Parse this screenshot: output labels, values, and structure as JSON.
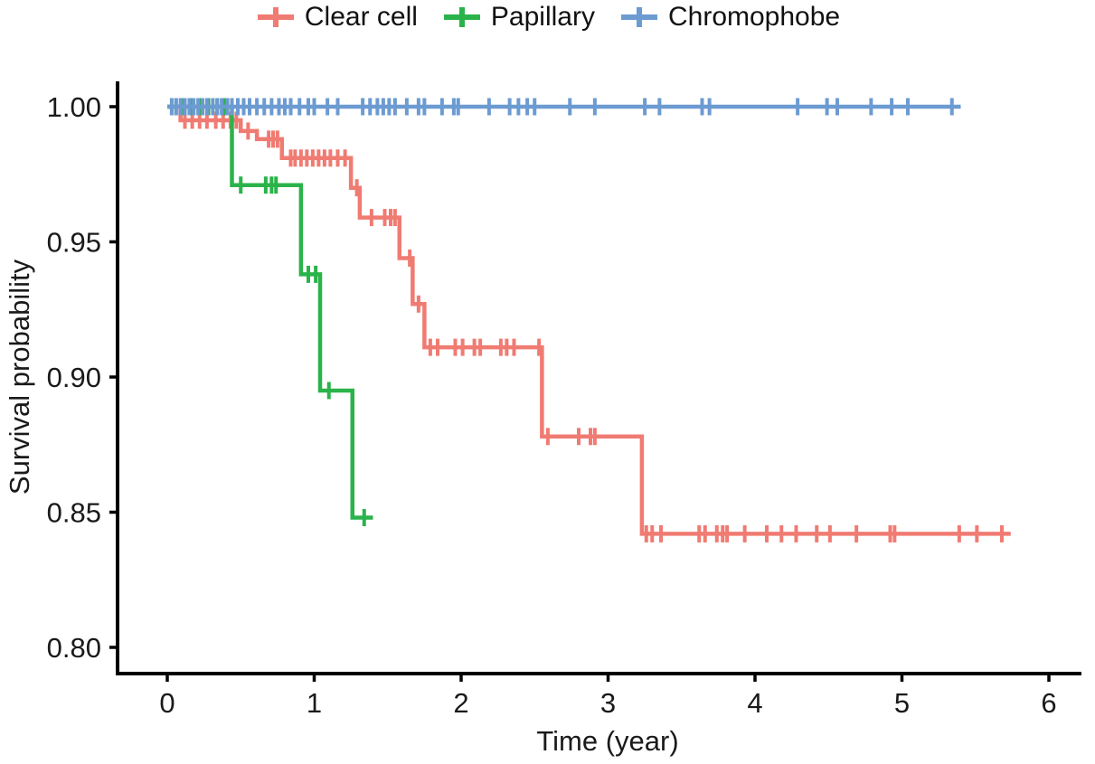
{
  "chart_data": {
    "type": "line",
    "chart_kind": "kaplan-meier-step",
    "title": "",
    "xlabel": "Time (year)",
    "ylabel": "Survival probability",
    "xlim": [
      0,
      6
    ],
    "xticks": [
      0,
      1,
      2,
      3,
      4,
      5,
      6
    ],
    "xtick_labels": [
      "0",
      "1",
      "2",
      "3",
      "4",
      "5",
      "6"
    ],
    "ylim": [
      0.8,
      1.0
    ],
    "yticks": [
      1.0,
      0.95,
      0.9,
      0.85,
      0.8
    ],
    "ytick_labels": [
      "1.00",
      "0.95",
      "0.90",
      "0.85",
      "0.80"
    ],
    "grid": false,
    "legend_position": "top-center",
    "axis_color": "#000000",
    "text_color": "#1a1a1a",
    "series": [
      {
        "name": "Clear cell",
        "color": "#F07B72",
        "steps": [
          [
            0,
            1.0
          ],
          [
            0.09,
            0.995
          ],
          [
            0.5,
            0.991
          ],
          [
            0.61,
            0.988
          ],
          [
            0.78,
            0.981
          ],
          [
            1.25,
            0.97
          ],
          [
            1.31,
            0.959
          ],
          [
            1.58,
            0.944
          ],
          [
            1.67,
            0.927
          ],
          [
            1.75,
            0.911
          ],
          [
            2.55,
            0.878
          ],
          [
            3.23,
            0.842
          ]
        ],
        "end_time": 5.74,
        "censor_times": [
          0.12,
          0.17,
          0.22,
          0.27,
          0.33,
          0.38,
          0.43,
          0.47,
          0.55,
          0.69,
          0.72,
          0.75,
          0.84,
          0.87,
          0.91,
          0.95,
          0.99,
          1.03,
          1.07,
          1.11,
          1.16,
          1.21,
          1.29,
          1.39,
          1.48,
          1.52,
          1.55,
          1.65,
          1.71,
          1.79,
          1.84,
          1.96,
          2.01,
          2.09,
          2.13,
          2.27,
          2.31,
          2.36,
          2.53,
          2.59,
          2.8,
          2.88,
          2.91,
          3.26,
          3.3,
          3.36,
          3.62,
          3.66,
          3.74,
          3.78,
          3.81,
          3.93,
          4.08,
          4.18,
          4.28,
          4.42,
          4.51,
          4.69,
          4.92,
          4.95,
          5.39,
          5.51,
          5.68
        ]
      },
      {
        "name": "Papillary",
        "color": "#2BB34B",
        "steps": [
          [
            0,
            1.0
          ],
          [
            0.44,
            0.971
          ],
          [
            0.91,
            0.938
          ],
          [
            1.04,
            0.895
          ],
          [
            1.26,
            0.848
          ]
        ],
        "end_time": 1.4,
        "censor_times": [
          0.06,
          0.11,
          0.16,
          0.22,
          0.28,
          0.34,
          0.39,
          0.5,
          0.67,
          0.71,
          0.74,
          0.96,
          1.01,
          1.1,
          1.34
        ]
      },
      {
        "name": "Chromophobe",
        "color": "#6C9BD2",
        "steps": [
          [
            0,
            1.0
          ]
        ],
        "end_time": 5.4,
        "censor_times": [
          0.03,
          0.06,
          0.09,
          0.12,
          0.15,
          0.18,
          0.21,
          0.24,
          0.27,
          0.31,
          0.34,
          0.37,
          0.41,
          0.44,
          0.48,
          0.52,
          0.56,
          0.61,
          0.66,
          0.71,
          0.76,
          0.8,
          0.84,
          0.9,
          0.96,
          1.0,
          1.09,
          1.16,
          1.33,
          1.38,
          1.43,
          1.47,
          1.51,
          1.55,
          1.63,
          1.71,
          1.75,
          1.87,
          1.95,
          1.98,
          2.19,
          2.33,
          2.39,
          2.45,
          2.5,
          2.74,
          2.91,
          3.25,
          3.35,
          3.64,
          3.69,
          4.29,
          4.49,
          4.56,
          4.79,
          4.93,
          5.04,
          5.34
        ]
      }
    ]
  }
}
